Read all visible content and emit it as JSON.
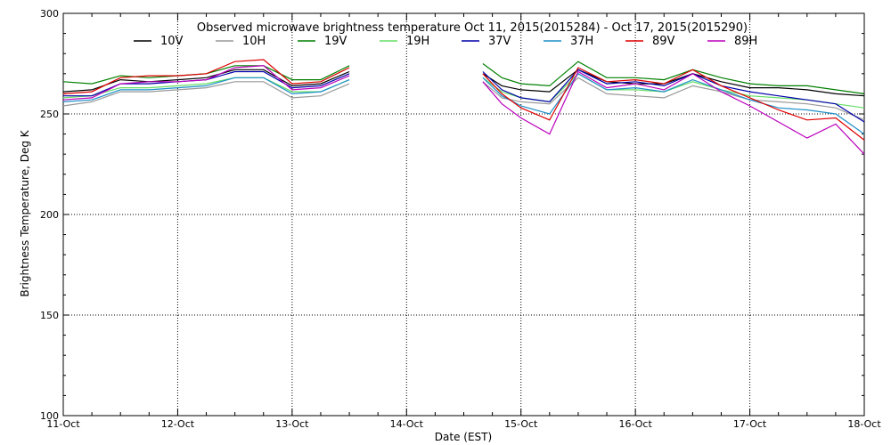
{
  "chart_data": {
    "type": "line",
    "title": "Observed microwave brightness temperature Oct 11, 2015(2015284) - Oct 17, 2015(2015290)",
    "xlabel": "Date (EST)",
    "ylabel": "Brightness Temperature, Deg K",
    "xlim": [
      "2015-10-11",
      "2015-10-18"
    ],
    "ylim": [
      100,
      300
    ],
    "x_ticks": [
      "11-Oct",
      "12-Oct",
      "13-Oct",
      "14-Oct",
      "15-Oct",
      "16-Oct",
      "17-Oct",
      "18-Oct"
    ],
    "y_ticks": [
      100,
      150,
      200,
      250,
      300
    ],
    "grid": true,
    "legend_position": "top",
    "series": [
      {
        "name": "10V",
        "color": "#000000",
        "x": [
          "2015-10-11 00:00",
          "2015-10-11 06:00",
          "2015-10-11 12:00",
          "2015-10-11 18:00",
          "2015-10-12 00:00",
          "2015-10-12 06:00",
          "2015-10-12 12:00",
          "2015-10-12 18:00",
          "2015-10-13 00:00",
          "2015-10-13 06:00",
          "2015-10-13 12:00",
          null,
          "2015-10-14 16:00",
          "2015-10-14 20:00",
          "2015-10-15 00:00",
          "2015-10-15 06:00",
          "2015-10-15 12:00",
          "2015-10-15 18:00",
          "2015-10-16 00:00",
          "2015-10-16 06:00",
          "2015-10-16 12:00",
          "2015-10-16 18:00",
          "2015-10-17 00:00",
          "2015-10-17 06:00",
          "2015-10-17 12:00",
          "2015-10-17 18:00",
          "2015-10-18 00:00"
        ],
        "y": [
          261,
          262,
          267,
          266,
          267,
          268,
          272,
          272,
          264,
          265,
          271,
          null,
          270,
          264,
          262,
          261,
          272,
          266,
          265,
          265,
          270,
          266,
          263,
          263,
          262,
          260,
          259
        ]
      },
      {
        "name": "10H",
        "color": "#999999",
        "x": [
          "2015-10-11 00:00",
          "2015-10-11 06:00",
          "2015-10-11 12:00",
          "2015-10-11 18:00",
          "2015-10-12 00:00",
          "2015-10-12 06:00",
          "2015-10-12 12:00",
          "2015-10-12 18:00",
          "2015-10-13 00:00",
          "2015-10-13 06:00",
          "2015-10-13 12:00",
          null,
          "2015-10-14 16:00",
          "2015-10-14 20:00",
          "2015-10-15 00:00",
          "2015-10-15 06:00",
          "2015-10-15 12:00",
          "2015-10-15 18:00",
          "2015-10-16 00:00",
          "2015-10-16 06:00",
          "2015-10-16 12:00",
          "2015-10-16 18:00",
          "2015-10-17 00:00",
          "2015-10-17 06:00",
          "2015-10-17 12:00",
          "2015-10-17 18:00",
          "2015-10-18 00:00"
        ],
        "y": [
          254,
          256,
          261,
          261,
          262,
          263,
          266,
          266,
          258,
          259,
          265,
          null,
          266,
          258,
          256,
          255,
          268,
          260,
          259,
          258,
          264,
          261,
          257,
          256,
          255,
          253,
          247
        ]
      },
      {
        "name": "19V",
        "color": "#008000",
        "x": [
          "2015-10-11 00:00",
          "2015-10-11 06:00",
          "2015-10-11 12:00",
          "2015-10-11 18:00",
          "2015-10-12 00:00",
          "2015-10-12 06:00",
          "2015-10-12 12:00",
          "2015-10-12 18:00",
          "2015-10-13 00:00",
          "2015-10-13 06:00",
          "2015-10-13 12:00",
          null,
          "2015-10-14 16:00",
          "2015-10-14 20:00",
          "2015-10-15 00:00",
          "2015-10-15 06:00",
          "2015-10-15 12:00",
          "2015-10-15 18:00",
          "2015-10-16 00:00",
          "2015-10-16 06:00",
          "2015-10-16 12:00",
          "2015-10-16 18:00",
          "2015-10-17 00:00",
          "2015-10-17 06:00",
          "2015-10-17 12:00",
          "2015-10-17 18:00",
          "2015-10-18 00:00"
        ],
        "y": [
          266,
          265,
          269,
          268,
          269,
          270,
          274,
          274,
          267,
          267,
          274,
          null,
          275,
          268,
          265,
          264,
          276,
          268,
          268,
          267,
          272,
          268,
          265,
          264,
          264,
          262,
          260
        ]
      },
      {
        "name": "19H",
        "color": "#66dd66",
        "x": [
          "2015-10-11 00:00",
          "2015-10-11 06:00",
          "2015-10-11 12:00",
          "2015-10-11 18:00",
          "2015-10-12 00:00",
          "2015-10-12 06:00",
          "2015-10-12 12:00",
          "2015-10-12 18:00",
          "2015-10-13 00:00",
          "2015-10-13 06:00",
          "2015-10-13 12:00",
          null,
          "2015-10-14 16:00",
          "2015-10-14 20:00",
          "2015-10-15 00:00",
          "2015-10-15 06:00",
          "2015-10-15 12:00",
          "2015-10-15 18:00",
          "2015-10-16 00:00",
          "2015-10-16 06:00",
          "2015-10-16 12:00",
          "2015-10-16 18:00",
          "2015-10-17 00:00",
          "2015-10-17 06:00",
          "2015-10-17 12:00",
          "2015-10-17 18:00",
          "2015-10-18 00:00"
        ],
        "y": [
          258,
          259,
          263,
          263,
          264,
          265,
          268,
          268,
          261,
          261,
          267,
          null,
          268,
          261,
          258,
          256,
          270,
          262,
          262,
          261,
          266,
          262,
          259,
          258,
          257,
          255,
          253
        ]
      },
      {
        "name": "37V",
        "color": "#0000aa",
        "x": [
          "2015-10-11 00:00",
          "2015-10-11 06:00",
          "2015-10-11 12:00",
          "2015-10-11 18:00",
          "2015-10-12 00:00",
          "2015-10-12 06:00",
          "2015-10-12 12:00",
          "2015-10-12 18:00",
          "2015-10-13 00:00",
          "2015-10-13 06:00",
          "2015-10-13 12:00",
          null,
          "2015-10-14 16:00",
          "2015-10-14 20:00",
          "2015-10-15 00:00",
          "2015-10-15 06:00",
          "2015-10-15 12:00",
          "2015-10-15 18:00",
          "2015-10-16 00:00",
          "2015-10-16 06:00",
          "2015-10-16 12:00",
          "2015-10-16 18:00",
          "2015-10-17 00:00",
          "2015-10-17 06:00",
          "2015-10-17 12:00",
          "2015-10-17 18:00",
          "2015-10-18 00:00"
        ],
        "y": [
          259,
          259,
          265,
          265,
          266,
          267,
          271,
          271,
          263,
          264,
          270,
          null,
          271,
          262,
          258,
          256,
          272,
          265,
          266,
          264,
          270,
          264,
          261,
          259,
          257,
          255,
          246
        ]
      },
      {
        "name": "37H",
        "color": "#1e90c8",
        "x": [
          "2015-10-11 00:00",
          "2015-10-11 06:00",
          "2015-10-11 12:00",
          "2015-10-11 18:00",
          "2015-10-12 00:00",
          "2015-10-12 06:00",
          "2015-10-12 12:00",
          "2015-10-12 18:00",
          "2015-10-13 00:00",
          "2015-10-13 06:00",
          "2015-10-13 12:00",
          null,
          "2015-10-14 16:00",
          "2015-10-14 20:00",
          "2015-10-15 00:00",
          "2015-10-15 06:00",
          "2015-10-15 12:00",
          "2015-10-15 18:00",
          "2015-10-16 00:00",
          "2015-10-16 06:00",
          "2015-10-16 12:00",
          "2015-10-16 18:00",
          "2015-10-17 00:00",
          "2015-10-17 06:00",
          "2015-10-17 12:00",
          "2015-10-17 18:00",
          "2015-10-18 00:00"
        ],
        "y": [
          256,
          257,
          262,
          262,
          263,
          264,
          268,
          268,
          260,
          261,
          267,
          null,
          268,
          259,
          254,
          250,
          270,
          262,
          263,
          261,
          267,
          262,
          257,
          253,
          252,
          250,
          240
        ]
      },
      {
        "name": "89V",
        "color": "#dd0000",
        "x": [
          "2015-10-11 00:00",
          "2015-10-11 06:00",
          "2015-10-11 12:00",
          "2015-10-11 18:00",
          "2015-10-12 00:00",
          "2015-10-12 06:00",
          "2015-10-12 12:00",
          "2015-10-12 18:00",
          "2015-10-13 00:00",
          "2015-10-13 06:00",
          "2015-10-13 12:00",
          null,
          "2015-10-14 16:00",
          "2015-10-14 20:00",
          "2015-10-15 00:00",
          "2015-10-15 06:00",
          "2015-10-15 12:00",
          "2015-10-15 18:00",
          "2015-10-16 00:00",
          "2015-10-16 06:00",
          "2015-10-16 12:00",
          "2015-10-16 18:00",
          "2015-10-17 00:00",
          "2015-10-17 06:00",
          "2015-10-17 12:00",
          "2015-10-17 18:00",
          "2015-10-18 00:00"
        ],
        "y": [
          260,
          261,
          268,
          269,
          269,
          270,
          276,
          277,
          265,
          266,
          273,
          null,
          270,
          260,
          253,
          247,
          273,
          266,
          267,
          265,
          272,
          264,
          258,
          252,
          247,
          248,
          237
        ]
      },
      {
        "name": "89H",
        "color": "#bb00bb",
        "x": [
          "2015-10-11 00:00",
          "2015-10-11 06:00",
          "2015-10-11 12:00",
          "2015-10-11 18:00",
          "2015-10-12 00:00",
          "2015-10-12 06:00",
          "2015-10-12 12:00",
          "2015-10-12 18:00",
          "2015-10-13 00:00",
          "2015-10-13 06:00",
          "2015-10-13 12:00",
          null,
          "2015-10-14 16:00",
          "2015-10-14 20:00",
          "2015-10-15 00:00",
          "2015-10-15 06:00",
          "2015-10-15 12:00",
          "2015-10-15 18:00",
          "2015-10-16 00:00",
          "2015-10-16 06:00",
          "2015-10-16 12:00",
          "2015-10-16 18:00",
          "2015-10-17 00:00",
          "2015-10-17 06:00",
          "2015-10-17 12:00",
          "2015-10-17 18:00",
          "2015-10-18 00:00"
        ],
        "y": [
          257,
          258,
          265,
          266,
          266,
          267,
          273,
          274,
          262,
          263,
          269,
          null,
          266,
          255,
          248,
          240,
          271,
          263,
          265,
          262,
          270,
          261,
          254,
          246,
          238,
          245,
          230
        ]
      }
    ]
  }
}
